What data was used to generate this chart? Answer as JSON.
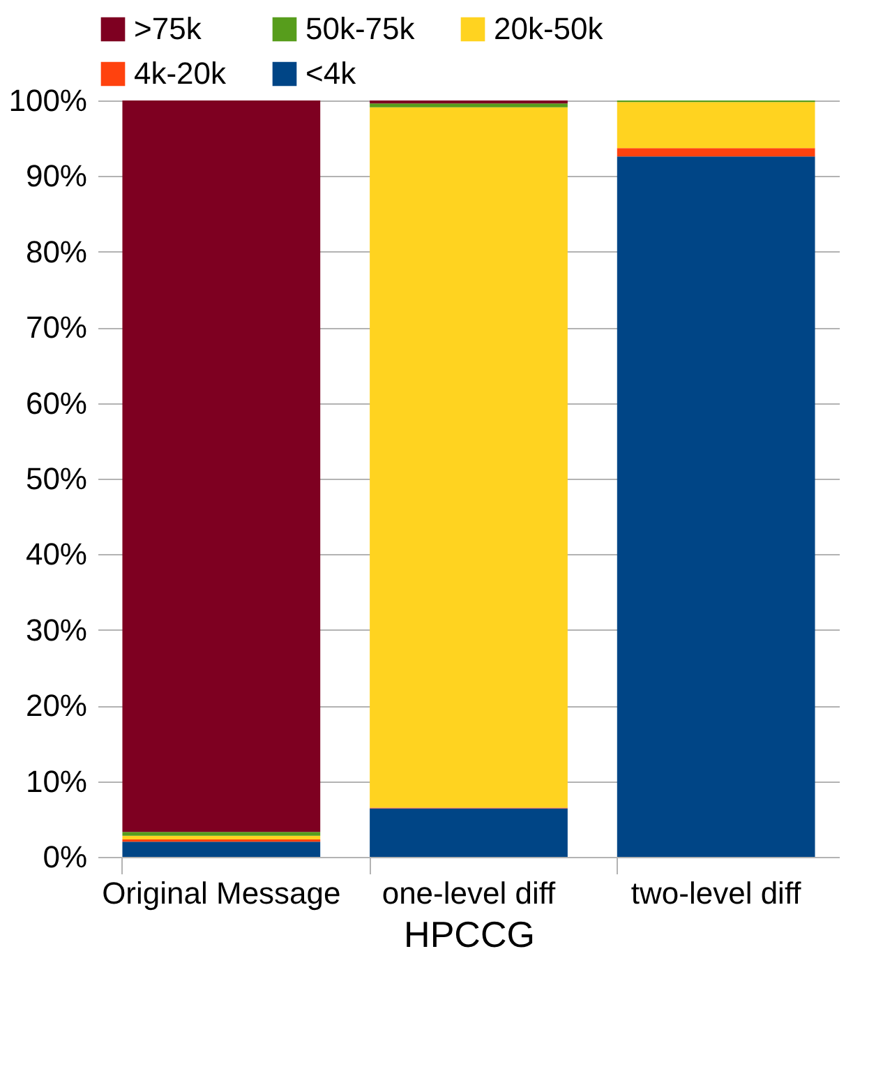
{
  "chart_data": {
    "type": "bar",
    "stacked": true,
    "xlabel": "HPCCG",
    "categories": [
      "Original Message",
      "one-level diff",
      "two-level diff"
    ],
    "series": [
      {
        "name": "<4k",
        "color": "#004586",
        "values": [
          2.0,
          6.4,
          92.6
        ]
      },
      {
        "name": "4k-20k",
        "color": "#ff420e",
        "values": [
          0.3,
          0.1,
          1.1
        ]
      },
      {
        "name": "20k-50k",
        "color": "#ffd320",
        "values": [
          0.5,
          92.6,
          6.1
        ]
      },
      {
        "name": "50k-75k",
        "color": "#579d1c",
        "values": [
          0.5,
          0.5,
          0.2
        ]
      },
      {
        "name": ">75k",
        "color": "#7e0021",
        "values": [
          96.7,
          0.4,
          0
        ]
      }
    ],
    "ylim": [
      0,
      100
    ],
    "yticks": [
      {
        "value": 0,
        "label": "0%"
      },
      {
        "value": 10,
        "label": "10%"
      },
      {
        "value": 20,
        "label": "20%"
      },
      {
        "value": 30,
        "label": "30%"
      },
      {
        "value": 40,
        "label": "40%"
      },
      {
        "value": 50,
        "label": "50%"
      },
      {
        "value": 60,
        "label": "60%"
      },
      {
        "value": 70,
        "label": "70%"
      },
      {
        "value": 80,
        "label": "80%"
      },
      {
        "value": 90,
        "label": "90%"
      },
      {
        "value": 100,
        "label": "100%"
      }
    ],
    "grid": "y",
    "legend": "top"
  }
}
